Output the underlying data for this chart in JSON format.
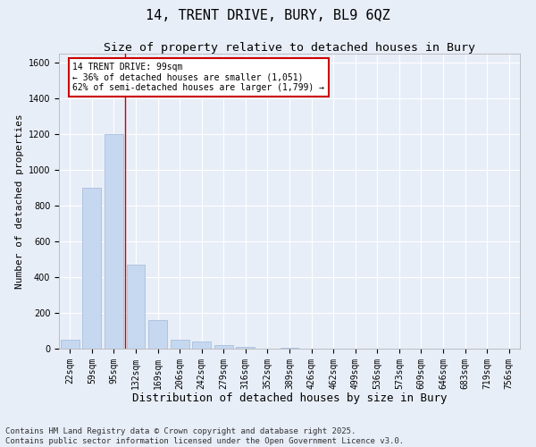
{
  "title1": "14, TRENT DRIVE, BURY, BL9 6QZ",
  "title2": "Size of property relative to detached houses in Bury",
  "xlabel": "Distribution of detached houses by size in Bury",
  "ylabel": "Number of detached properties",
  "categories": [
    "22sqm",
    "59sqm",
    "95sqm",
    "132sqm",
    "169sqm",
    "206sqm",
    "242sqm",
    "279sqm",
    "316sqm",
    "352sqm",
    "389sqm",
    "426sqm",
    "462sqm",
    "499sqm",
    "536sqm",
    "573sqm",
    "609sqm",
    "646sqm",
    "683sqm",
    "719sqm",
    "756sqm"
  ],
  "values": [
    50,
    900,
    1200,
    470,
    160,
    50,
    40,
    20,
    10,
    0,
    5,
    0,
    0,
    0,
    0,
    0,
    0,
    0,
    0,
    0,
    0
  ],
  "bar_color": "#c5d8f0",
  "bar_edge_color": "#a0b8d8",
  "vline_x": 2.5,
  "vline_color": "#cc0000",
  "annotation_box_text": "14 TRENT DRIVE: 99sqm\n← 36% of detached houses are smaller (1,051)\n62% of semi-detached houses are larger (1,799) →",
  "annotation_box_color": "#cc0000",
  "ylim": [
    0,
    1650
  ],
  "yticks": [
    0,
    200,
    400,
    600,
    800,
    1000,
    1200,
    1400,
    1600
  ],
  "bg_color": "#e8eef8",
  "plot_bg_color": "#e8eef8",
  "footer_line1": "Contains HM Land Registry data © Crown copyright and database right 2025.",
  "footer_line2": "Contains public sector information licensed under the Open Government Licence v3.0.",
  "title1_fontsize": 11,
  "title2_fontsize": 9.5,
  "xlabel_fontsize": 9,
  "ylabel_fontsize": 8,
  "footer_fontsize": 6.5,
  "tick_fontsize": 7,
  "annot_fontsize": 7
}
